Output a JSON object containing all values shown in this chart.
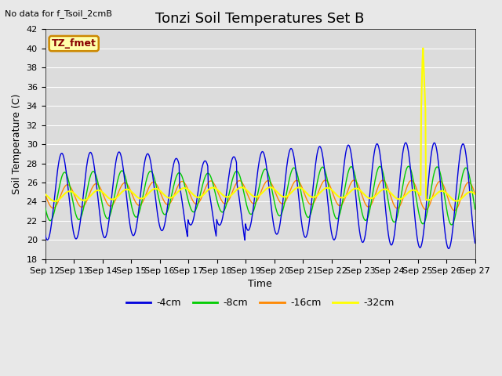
{
  "title": "Tonzi Soil Temperatures Set B",
  "no_data_text": "No data for f_Tsoil_2cmB",
  "legend_label_text": "TZ_fmet",
  "xlabel": "Time",
  "ylabel": "Soil Temperature (C)",
  "ylim": [
    18,
    42
  ],
  "yticks": [
    18,
    20,
    22,
    24,
    26,
    28,
    30,
    32,
    34,
    36,
    38,
    40,
    42
  ],
  "xtick_labels": [
    "Sep 12",
    "Sep 13",
    "Sep 14",
    "Sep 15",
    "Sep 16",
    "Sep 17",
    "Sep 18",
    "Sep 19",
    "Sep 20",
    "Sep 21",
    "Sep 22",
    "Sep 23",
    "Sep 24",
    "Sep 25",
    "Sep 26",
    "Sep 27"
  ],
  "colors": {
    "4cm": "#0000dd",
    "8cm": "#00cc00",
    "16cm": "#ff8800",
    "32cm": "#ffff00"
  },
  "legend_entries": [
    "-4cm",
    "-8cm",
    "-16cm",
    "-32cm"
  ],
  "background_color": "#dcdcdc",
  "grid_color": "#ffffff",
  "fig_facecolor": "#e8e8e8",
  "title_fontsize": 13,
  "axis_fontsize": 9,
  "tick_fontsize": 8,
  "nodata_fontsize": 8
}
